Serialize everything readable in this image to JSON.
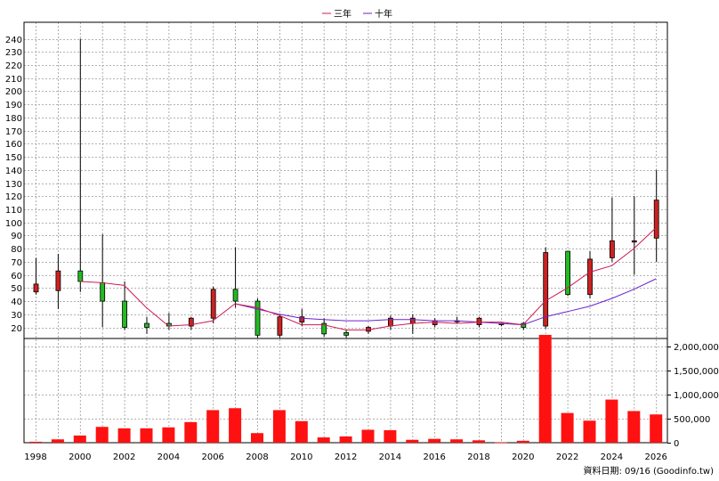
{
  "legend": {
    "three_year": "三年",
    "ten_year": "十年"
  },
  "footer": "資料日期: 09/16  (Goodinfo.tw)",
  "colors": {
    "up": "#cc2222",
    "down": "#22bb22",
    "ma3": "#cc1a55",
    "ma10": "#6a22cc",
    "volume": "#ff1111",
    "grid": "#999999"
  },
  "chart_data": [
    {
      "type": "candlestick",
      "years": [
        1998,
        1999,
        2000,
        2001,
        2002,
        2003,
        2004,
        2005,
        2006,
        2007,
        2008,
        2009,
        2010,
        2011,
        2012,
        2013,
        2014,
        2015,
        2016,
        2017,
        2018,
        2019,
        2020,
        2021,
        2022,
        2023,
        2024,
        2025,
        2026
      ],
      "open": [
        47,
        48,
        63,
        54,
        40,
        23,
        23,
        21,
        27,
        49,
        40,
        14,
        24,
        23,
        16,
        17,
        21,
        23,
        22,
        25,
        22,
        22,
        23,
        21,
        78,
        45,
        73,
        85,
        88
      ],
      "close": [
        53,
        63,
        55,
        40,
        20,
        20,
        21,
        27,
        49,
        40,
        14,
        28,
        28,
        15,
        14,
        20,
        27,
        27,
        25,
        25,
        27,
        23,
        20,
        77,
        45,
        72,
        86,
        86,
        117
      ],
      "high": [
        73,
        76,
        240,
        91,
        55,
        28,
        31,
        28,
        51,
        81,
        42,
        30,
        34,
        27,
        18,
        21,
        29,
        30,
        27,
        28,
        28,
        23,
        24,
        81,
        78,
        78,
        119,
        120,
        140
      ],
      "low": [
        45,
        34,
        47,
        20,
        18,
        15,
        18,
        18,
        23,
        35,
        12,
        12,
        21,
        13,
        12,
        15,
        18,
        15,
        20,
        23,
        20,
        21,
        18,
        19,
        44,
        42,
        70,
        60,
        70
      ],
      "ma3": [
        null,
        null,
        55,
        54,
        52,
        35,
        21,
        22,
        25,
        38,
        35,
        29,
        22,
        22,
        18,
        18,
        21,
        23,
        24,
        23,
        24,
        24,
        22,
        40,
        50,
        62,
        67,
        80,
        96
      ],
      "ma10": [
        null,
        null,
        null,
        null,
        null,
        null,
        null,
        null,
        null,
        38,
        34,
        30,
        27,
        26,
        25,
        25,
        26,
        26,
        25,
        25,
        24,
        23,
        22,
        28,
        32,
        36,
        42,
        49,
        57
      ],
      "yticks": [
        20,
        30,
        40,
        50,
        60,
        70,
        80,
        90,
        100,
        110,
        120,
        130,
        140,
        150,
        160,
        170,
        180,
        190,
        200,
        210,
        220,
        230,
        240
      ],
      "ylim": [
        8,
        245
      ],
      "grid": true,
      "legend_position": "top-center"
    },
    {
      "type": "bar",
      "years": [
        1998,
        1999,
        2000,
        2001,
        2002,
        2003,
        2004,
        2005,
        2006,
        2007,
        2008,
        2009,
        2010,
        2011,
        2012,
        2013,
        2014,
        2015,
        2016,
        2017,
        2018,
        2019,
        2020,
        2021,
        2022,
        2023,
        2024,
        2025,
        2026
      ],
      "values": [
        20000,
        70000,
        150000,
        330000,
        300000,
        300000,
        320000,
        430000,
        680000,
        720000,
        200000,
        680000,
        450000,
        110000,
        130000,
        270000,
        260000,
        60000,
        80000,
        70000,
        50000,
        10000,
        40000,
        2250000,
        620000,
        460000,
        900000,
        660000,
        590000
      ],
      "yticks": [
        0,
        500000,
        1000000,
        1500000,
        2000000
      ],
      "ytick_labels": [
        "0",
        "500,000",
        "1,000,000",
        "1,500,000",
        "2,000,000"
      ],
      "ylim": [
        0,
        2350000
      ],
      "grid": true
    }
  ],
  "xtick_labels": [
    "1998",
    "2000",
    "2002",
    "2004",
    "2006",
    "2008",
    "2010",
    "2012",
    "2014",
    "2016",
    "2018",
    "2020",
    "2022",
    "2024",
    "2026"
  ]
}
